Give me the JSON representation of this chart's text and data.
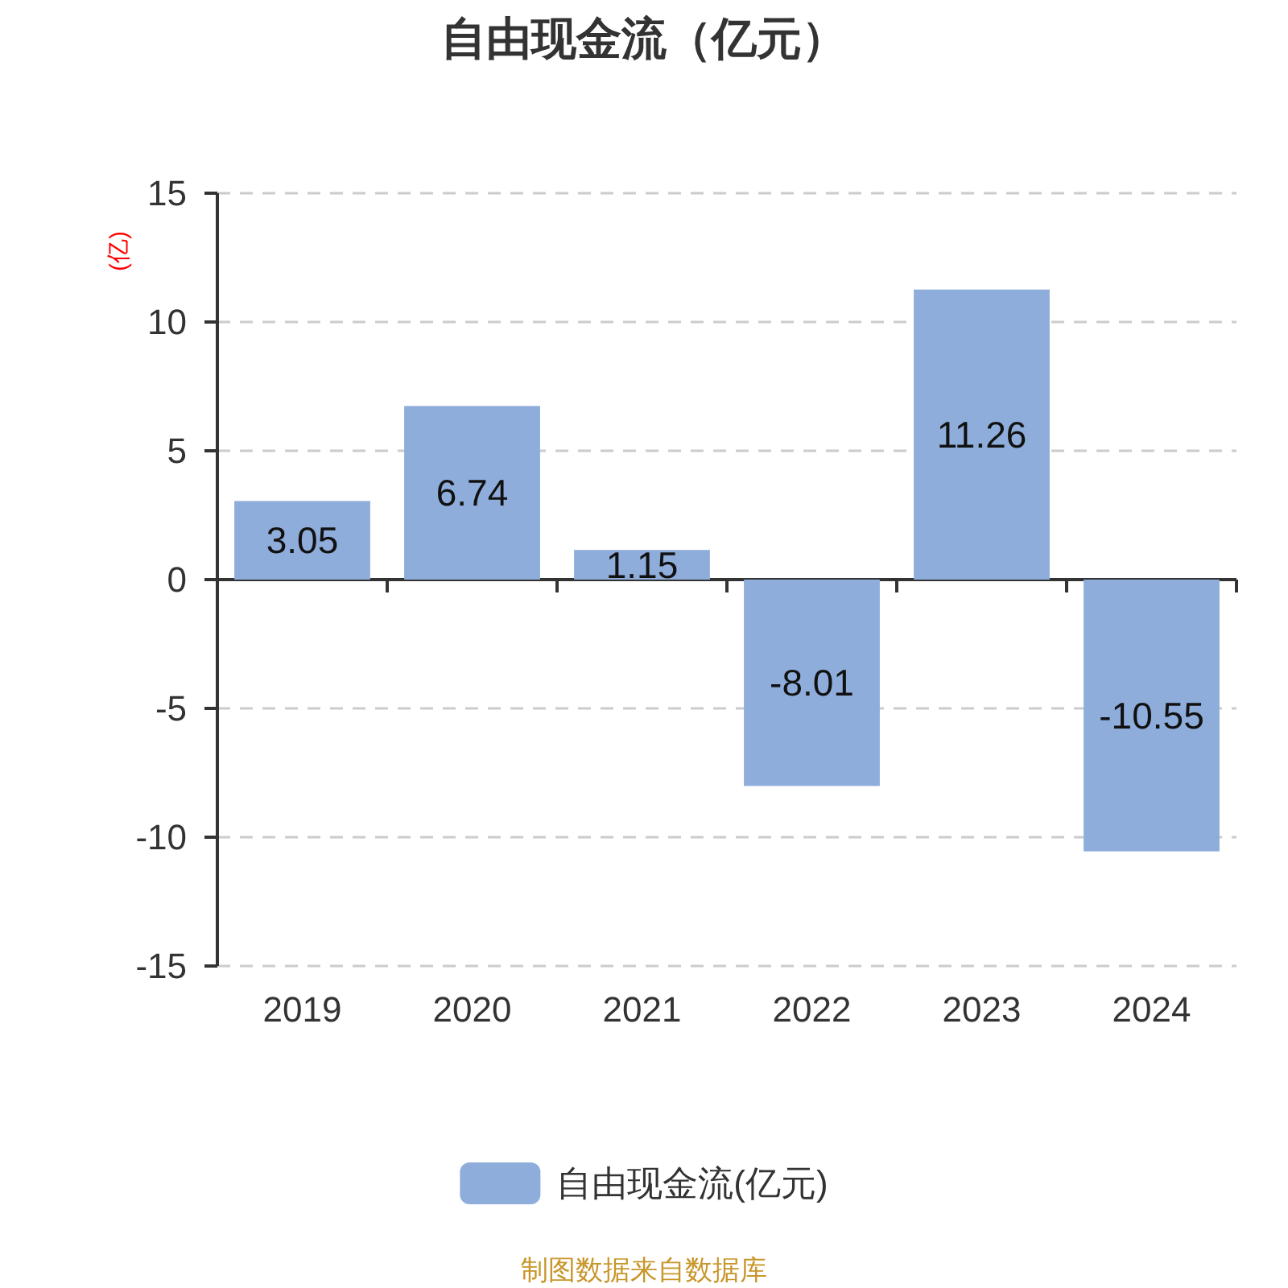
{
  "chart_data": {
    "type": "bar",
    "title": "自由现金流（亿元）",
    "ylabel": "(亿)",
    "categories": [
      "2019",
      "2020",
      "2021",
      "2022",
      "2023",
      "2024"
    ],
    "series": [
      {
        "name": "自由现金流(亿元)",
        "color": "#8eadda",
        "values": [
          3.05,
          6.74,
          1.15,
          -8.01,
          11.26,
          -10.55
        ]
      }
    ],
    "ylim": [
      -15,
      15
    ],
    "yticks": [
      -15,
      -10,
      -5,
      0,
      5,
      10,
      15
    ],
    "grid": "y",
    "legend": "bottom",
    "data_labels": true,
    "annotations": [
      "制图数据来自数据库"
    ]
  }
}
